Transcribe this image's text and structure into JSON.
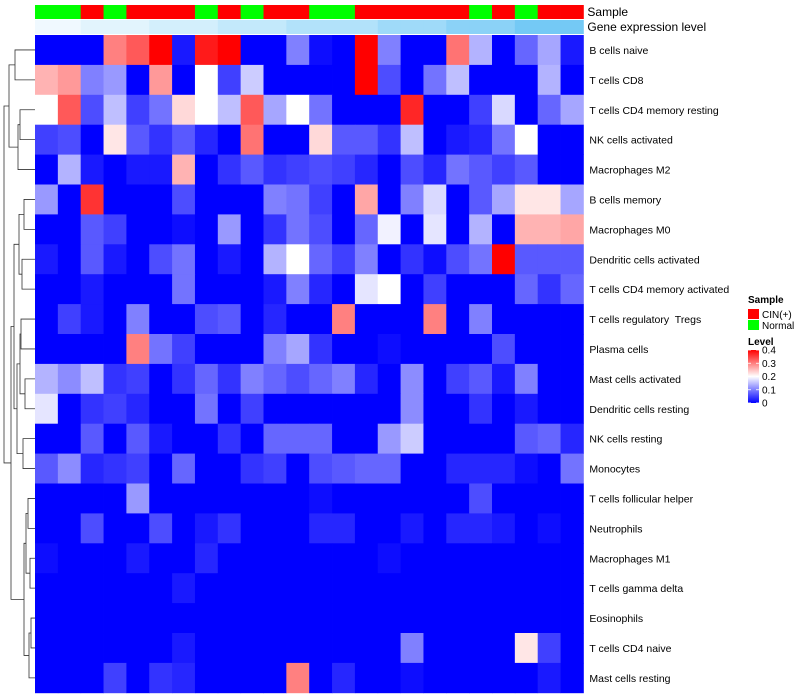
{
  "chart_data": {
    "type": "heatmap",
    "title": "",
    "annotation_tracks": [
      {
        "label": "Sample",
        "values": [
          "Normal",
          "Normal",
          "CIN(+)",
          "Normal",
          "CIN(+)",
          "CIN(+)",
          "CIN(+)",
          "Normal",
          "CIN(+)",
          "Normal",
          "CIN(+)",
          "CIN(+)",
          "Normal",
          "Normal",
          "CIN(+)",
          "CIN(+)",
          "CIN(+)",
          "CIN(+)",
          "CIN(+)",
          "Normal",
          "CIN(+)",
          "Normal",
          "CIN(+)",
          "CIN(+)"
        ]
      },
      {
        "label": "Gene expression level",
        "values": [
          0,
          0,
          1,
          1,
          1,
          2,
          2,
          2,
          3,
          3,
          3,
          4,
          4,
          4,
          4,
          5,
          5,
          5,
          6,
          6,
          6,
          7,
          7,
          7
        ]
      }
    ],
    "rows": [
      {
        "name": "B cells naive",
        "values": [
          0.0,
          0.0,
          0.0,
          0.3,
          0.33,
          0.4,
          0.02,
          0.38,
          0.4,
          0.0,
          0.0,
          0.1,
          0.01,
          0.0,
          0.4,
          0.1,
          0.0,
          0.0,
          0.31,
          0.14,
          0.0,
          0.08,
          0.13,
          0.02
        ]
      },
      {
        "name": "T cells CD8",
        "values": [
          0.26,
          0.28,
          0.1,
          0.12,
          0.0,
          0.28,
          0.0,
          0.2,
          0.05,
          0.16,
          0.0,
          0.0,
          0.0,
          0.0,
          0.4,
          0.06,
          0.0,
          0.09,
          0.15,
          0.0,
          0.0,
          0.0,
          0.14,
          0.0
        ]
      },
      {
        "name": "T cells CD4 memory resting",
        "values": [
          0.2,
          0.33,
          0.06,
          0.15,
          0.05,
          0.09,
          0.23,
          0.2,
          0.15,
          0.33,
          0.13,
          0.2,
          0.09,
          0.0,
          0.0,
          0.0,
          0.37,
          0.0,
          0.0,
          0.05,
          0.17,
          0.0,
          0.08,
          0.13
        ]
      },
      {
        "name": "NK cells activated",
        "values": [
          0.05,
          0.06,
          0.0,
          0.22,
          0.07,
          0.04,
          0.07,
          0.03,
          0.0,
          0.31,
          0.0,
          0.0,
          0.23,
          0.07,
          0.07,
          0.04,
          0.15,
          0.0,
          0.02,
          0.03,
          0.09,
          0.2,
          0.0,
          0.0
        ]
      },
      {
        "name": "Macrophages M2",
        "values": [
          0.0,
          0.14,
          0.02,
          0.0,
          0.02,
          0.02,
          0.26,
          0.0,
          0.04,
          0.07,
          0.04,
          0.05,
          0.06,
          0.05,
          0.03,
          0.0,
          0.06,
          0.03,
          0.09,
          0.07,
          0.05,
          0.07,
          0.0,
          0.0
        ]
      },
      {
        "name": "B cells memory",
        "values": [
          0.12,
          0.0,
          0.36,
          0.0,
          0.0,
          0.0,
          0.06,
          0.0,
          0.0,
          0.0,
          0.1,
          0.09,
          0.05,
          0.0,
          0.27,
          0.0,
          0.1,
          0.17,
          0.0,
          0.07,
          0.13,
          0.22,
          0.22,
          0.13
        ]
      },
      {
        "name": "Macrophages M0",
        "values": [
          0.0,
          0.0,
          0.07,
          0.05,
          0.0,
          0.0,
          0.01,
          0.0,
          0.12,
          0.0,
          0.04,
          0.09,
          0.06,
          0.0,
          0.08,
          0.19,
          0.0,
          0.18,
          0.0,
          0.14,
          0.0,
          0.26,
          0.26,
          0.27
        ]
      },
      {
        "name": "Dendritic cells activated",
        "values": [
          0.02,
          0.0,
          0.07,
          0.02,
          0.0,
          0.06,
          0.09,
          0.0,
          0.02,
          0.0,
          0.14,
          0.2,
          0.08,
          0.05,
          0.1,
          0.0,
          0.04,
          0.01,
          0.06,
          0.09,
          0.4,
          0.07,
          0.07,
          0.07
        ]
      },
      {
        "name": "T cells CD4 memory activated",
        "values": [
          0.0,
          0.0,
          0.02,
          0.0,
          0.0,
          0.0,
          0.09,
          0.0,
          0.0,
          0.0,
          0.02,
          0.1,
          0.03,
          0.0,
          0.18,
          0.2,
          0.0,
          0.05,
          0.0,
          0.0,
          0.0,
          0.08,
          0.04,
          0.08
        ]
      },
      {
        "name": "T cells regulatory  Tregs",
        "values": [
          0.0,
          0.05,
          0.02,
          0.0,
          0.1,
          0.0,
          0.0,
          0.06,
          0.07,
          0.0,
          0.03,
          0.0,
          0.0,
          0.3,
          0.0,
          0.0,
          0.0,
          0.3,
          0.0,
          0.1,
          0.0,
          0.0,
          0.0,
          0.0
        ]
      },
      {
        "name": "Plasma cells",
        "values": [
          0.0,
          0.0,
          0.0,
          0.0,
          0.3,
          0.09,
          0.05,
          0.0,
          0.0,
          0.0,
          0.1,
          0.13,
          0.04,
          0.0,
          0.0,
          0.01,
          0.0,
          0.0,
          0.0,
          0.0,
          0.06,
          0.0,
          0.0,
          0.0
        ]
      },
      {
        "name": "Mast cells activated",
        "values": [
          0.14,
          0.11,
          0.15,
          0.04,
          0.05,
          0.0,
          0.04,
          0.08,
          0.04,
          0.1,
          0.08,
          0.06,
          0.08,
          0.1,
          0.03,
          0.0,
          0.11,
          0.0,
          0.05,
          0.07,
          0.02,
          0.1,
          0.0,
          0.0
        ]
      },
      {
        "name": "Dendritic cells resting",
        "values": [
          0.18,
          0.0,
          0.04,
          0.05,
          0.03,
          0.0,
          0.0,
          0.09,
          0.0,
          0.05,
          0.0,
          0.0,
          0.0,
          0.0,
          0.0,
          0.0,
          0.11,
          0.0,
          0.0,
          0.04,
          0.0,
          0.02,
          0.0,
          0.0
        ]
      },
      {
        "name": "NK cells resting",
        "values": [
          0.0,
          0.0,
          0.07,
          0.0,
          0.07,
          0.02,
          0.0,
          0.0,
          0.04,
          0.0,
          0.08,
          0.08,
          0.08,
          0.0,
          0.0,
          0.12,
          0.16,
          0.0,
          0.0,
          0.0,
          0.0,
          0.07,
          0.08,
          0.03
        ]
      },
      {
        "name": "Monocytes",
        "values": [
          0.07,
          0.11,
          0.03,
          0.04,
          0.05,
          0.0,
          0.08,
          0.0,
          0.0,
          0.04,
          0.05,
          0.0,
          0.06,
          0.07,
          0.08,
          0.08,
          0.0,
          0.0,
          0.03,
          0.03,
          0.03,
          0.01,
          0.0,
          0.09
        ]
      },
      {
        "name": "T cells follicular helper",
        "values": [
          0.0,
          0.0,
          0.0,
          0.0,
          0.12,
          0.0,
          0.0,
          0.0,
          0.0,
          0.0,
          0.0,
          0.0,
          0.01,
          0.0,
          0.0,
          0.0,
          0.0,
          0.0,
          0.0,
          0.06,
          0.0,
          0.0,
          0.0,
          0.0
        ]
      },
      {
        "name": "Neutrophils",
        "values": [
          0.0,
          0.0,
          0.06,
          0.0,
          0.0,
          0.06,
          0.0,
          0.02,
          0.04,
          0.0,
          0.0,
          0.0,
          0.03,
          0.03,
          0.0,
          0.0,
          0.02,
          0.0,
          0.03,
          0.03,
          0.02,
          0.0,
          0.01,
          0.0
        ]
      },
      {
        "name": "Macrophages M1",
        "values": [
          0.01,
          0.0,
          0.0,
          0.0,
          0.02,
          0.0,
          0.0,
          0.03,
          0.0,
          0.0,
          0.0,
          0.0,
          0.0,
          0.0,
          0.0,
          0.01,
          0.0,
          0.0,
          0.0,
          0.0,
          0.0,
          0.0,
          0.0,
          0.0
        ]
      },
      {
        "name": "T cells gamma delta",
        "values": [
          0.0,
          0.0,
          0.0,
          0.0,
          0.0,
          0.0,
          0.02,
          0.0,
          0.0,
          0.0,
          0.0,
          0.0,
          0.0,
          0.0,
          0.0,
          0.0,
          0.0,
          0.0,
          0.0,
          0.0,
          0.0,
          0.0,
          0.0,
          0.0
        ]
      },
      {
        "name": "Eosinophils",
        "values": [
          0.0,
          0.0,
          0.0,
          0.0,
          0.0,
          0.0,
          0.0,
          0.0,
          0.0,
          0.0,
          0.0,
          0.0,
          0.0,
          0.0,
          0.0,
          0.0,
          0.0,
          0.0,
          0.0,
          0.0,
          0.0,
          0.0,
          0.0,
          0.0
        ]
      },
      {
        "name": "T cells CD4 naive",
        "values": [
          0.0,
          0.0,
          0.0,
          0.0,
          0.0,
          0.0,
          0.02,
          0.0,
          0.0,
          0.0,
          0.0,
          0.0,
          0.0,
          0.0,
          0.0,
          0.0,
          0.1,
          0.0,
          0.0,
          0.0,
          0.0,
          0.22,
          0.05,
          0.0
        ]
      },
      {
        "name": "Mast cells resting",
        "values": [
          0.0,
          0.0,
          0.0,
          0.05,
          0.0,
          0.04,
          0.03,
          0.0,
          0.0,
          0.0,
          0.0,
          0.3,
          0.0,
          0.03,
          0.0,
          0.0,
          0.01,
          0.0,
          0.0,
          0.0,
          0.0,
          0.0,
          0.02,
          0.0
        ]
      }
    ],
    "color_scale": {
      "min": 0,
      "mid": 0.2,
      "max": 0.4,
      "low_color": "#0000ff",
      "mid_color": "#ffffff",
      "high_color": "#ff0000"
    },
    "legend": {
      "sample_title": "Sample",
      "sample_items": [
        {
          "label": "CIN(+)",
          "color": "#ff0000"
        },
        {
          "label": "Normal",
          "color": "#00ff00"
        }
      ],
      "level_title": "Level",
      "level_ticks": [
        "0.4",
        "0.3",
        "0.2",
        "0.1",
        "0"
      ],
      "placement": "right"
    },
    "expression_colors": [
      "#f0f9ff",
      "#e2f4fd",
      "#d3effc",
      "#c3e9fb",
      "#b2e2fa",
      "#9fdaf9",
      "#8bd2f7",
      "#74c9f5"
    ]
  }
}
